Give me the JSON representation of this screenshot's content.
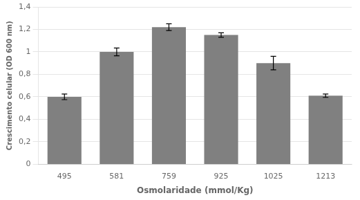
{
  "chart_data": {
    "type": "bar",
    "categories": [
      "495",
      "581",
      "759",
      "925",
      "1025",
      "1213"
    ],
    "values": [
      0.6,
      1.0,
      1.22,
      1.15,
      0.9,
      0.61
    ],
    "errors": [
      0.025,
      0.035,
      0.03,
      0.02,
      0.06,
      0.015
    ],
    "color": "#808080",
    "xlabel": "Osmolaridade (mmol/Kg)",
    "ylabel": "Crescimento celular (OD 600 nm)",
    "ylim": [
      0,
      1.4
    ],
    "yticks": [
      0,
      {
        "value": 0.2,
        "label": "0,2"
      },
      {
        "value": 0.4,
        "label": "0,4"
      },
      {
        "value": 0.6,
        "label": "0,6"
      },
      {
        "value": 0.8,
        "label": "0,8"
      },
      1,
      {
        "value": 1.2,
        "label": "1,2"
      },
      {
        "value": 1.4,
        "label": "1,4"
      }
    ],
    "grid": true
  }
}
